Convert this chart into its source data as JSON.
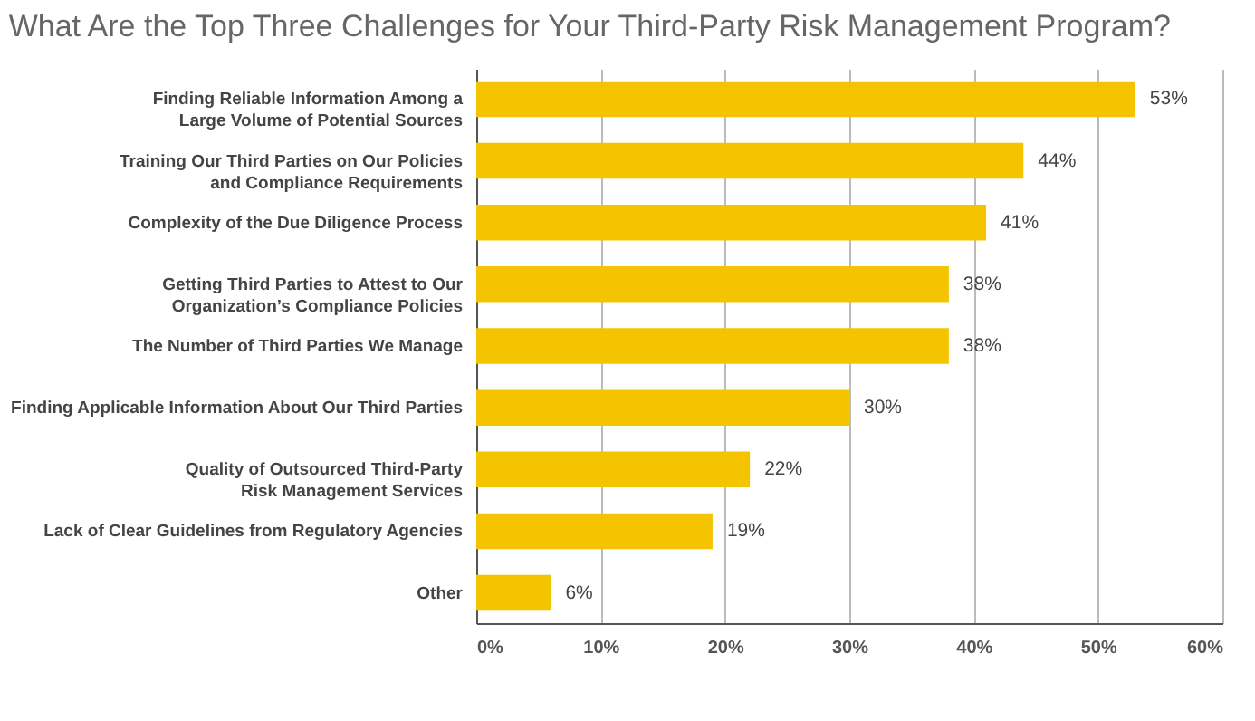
{
  "chart_data": {
    "type": "bar",
    "orientation": "horizontal",
    "title": "What Are the Top Three Challenges for Your Third-Party Risk Management Program?",
    "categories": [
      "Finding Reliable Information Among a\nLarge Volume of Potential Sources",
      "Training Our Third Parties on Our Policies\nand Compliance Requirements",
      "Complexity of the Due Diligence Process",
      "Getting Third Parties to Attest to Our\nOrganization’s Compliance Policies",
      "The Number of Third Parties We Manage",
      "Finding Applicable Information About Our Third Parties",
      "Quality of Outsourced Third-Party\nRisk Management Services",
      "Lack of Clear Guidelines from Regulatory Agencies",
      "Other"
    ],
    "values": [
      53,
      44,
      41,
      38,
      38,
      30,
      22,
      19,
      6
    ],
    "value_labels": [
      "53%",
      "44%",
      "41%",
      "38%",
      "38%",
      "30%",
      "22%",
      "19%",
      "6%"
    ],
    "color": "#f5c400",
    "xlim": [
      0,
      60
    ],
    "xticks": [
      {
        "value": 0,
        "label": "0%"
      },
      {
        "value": 10,
        "label": "10%"
      },
      {
        "value": 20,
        "label": "20%"
      },
      {
        "value": 30,
        "label": "30%"
      },
      {
        "value": 40,
        "label": "40%"
      },
      {
        "value": 50,
        "label": "50%"
      },
      {
        "value": 60,
        "label": "60%"
      }
    ],
    "grid": "x"
  }
}
